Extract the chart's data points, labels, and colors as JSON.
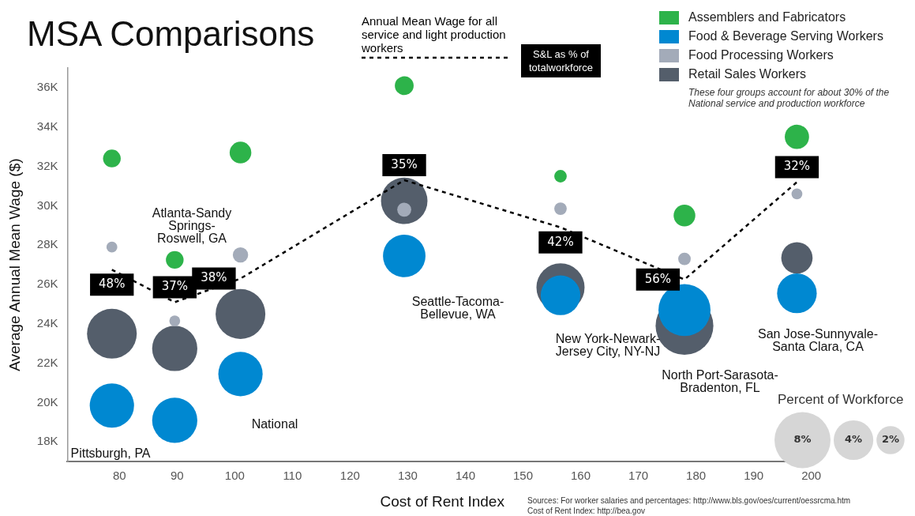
{
  "chart_data": {
    "type": "bubble",
    "title": "MSA Comparisons",
    "xlabel": "Cost of Rent Index",
    "ylabel": "Average Annual Mean Wage ($)",
    "xlim": [
      71,
      201
    ],
    "xticks": [
      80,
      90,
      100,
      110,
      120,
      130,
      140,
      150,
      160,
      170,
      180,
      190,
      200
    ],
    "ylim": [
      17000,
      37000
    ],
    "yticks": [
      {
        "value": 18000,
        "label": "18K"
      },
      {
        "value": 20000,
        "label": "20K"
      },
      {
        "value": 22000,
        "label": "22K"
      },
      {
        "value": 24000,
        "label": "24K"
      },
      {
        "value": 26000,
        "label": "26K"
      },
      {
        "value": 28000,
        "label": "28K"
      },
      {
        "value": 30000,
        "label": "30K"
      },
      {
        "value": 32000,
        "label": "32K"
      },
      {
        "value": 34000,
        "label": "34K"
      },
      {
        "value": 36000,
        "label": "36K"
      }
    ],
    "x": [
      78.7,
      89.6,
      101,
      129.4,
      156.5,
      178,
      197.5
    ],
    "grid": false,
    "legend": "top right",
    "size_legend": [
      {
        "value": 8,
        "label": "8%"
      },
      {
        "value": 4,
        "label": "4%"
      },
      {
        "value": 2,
        "label": "2%"
      }
    ],
    "series": [
      {
        "name": "Assemblers and Fabricators",
        "color": "#2db34a",
        "values": [
          32400,
          27250,
          32700,
          36100,
          31500,
          29500,
          33500
        ],
        "sizes": [
          0.8,
          0.8,
          1.2,
          0.9,
          0.4,
          1.2,
          1.5
        ]
      },
      {
        "name": "Food & Beverage Serving Workers",
        "color": "#0088d1",
        "values": [
          19850,
          19100,
          21450,
          27450,
          25450,
          24700,
          25550
        ],
        "sizes": [
          5.0,
          5.2,
          5.0,
          4.6,
          4.0,
          6.9,
          4.0
        ]
      },
      {
        "name": "Food Processing Workers",
        "color": "#a3abb9",
        "values": [
          27900,
          24150,
          27500,
          29800,
          29850,
          27300,
          30600
        ],
        "sizes": [
          0.3,
          0.3,
          0.6,
          0.5,
          0.4,
          0.4,
          0.3
        ]
      },
      {
        "name": "Retail Sales Workers",
        "color": "#545e6b",
        "values": [
          23500,
          22750,
          24500,
          30250,
          25850,
          23900,
          27350
        ],
        "sizes": [
          6.3,
          5.2,
          6.3,
          5.5,
          5.9,
          8.5,
          2.5
        ]
      },
      {
        "name": "Annual Mean Wage for all service and light production workers",
        "type": "line",
        "color": "#000000",
        "line_style": "dashed",
        "values": [
          26750,
          25100,
          26300,
          31300,
          28900,
          26250,
          31200
        ]
      }
    ],
    "annotations": [
      "Pittsburgh, PA",
      "Atlanta-Sandy\nSprings-\nRoswell, GA",
      "National",
      "Seattle-Tacoma-\nBellevue, WA",
      "New York-Newark-\nJersey City, NY-NJ",
      "North Port-Sarasota-\nBradenton, FL",
      "San Jose-Sunnyvale-\nSanta Clara, CA",
      "S&L as % of\ntotalworkforce",
      "These four groups account for about 30% of the\nNational service and production workforce",
      "Percent of Workforce",
      "Sources: For worker salaries and percentages: http://www.bls.gov/oes/current/oessrcma.htm\nCost of Rent Index: http://bea.gov",
      {
        "text": "48%",
        "x": 78.7,
        "y": 26750
      },
      {
        "text": "37%",
        "x": 89.6,
        "y": 25100
      },
      {
        "text": "38%",
        "x": 101,
        "y": 26300
      },
      {
        "text": "35%",
        "x": 129.4,
        "y": 31300
      },
      {
        "text": "42%",
        "x": 156.5,
        "y": 28900
      },
      {
        "text": "56%",
        "x": 178,
        "y": 26250
      },
      {
        "text": "32%",
        "x": 197.5,
        "y": 31200
      }
    ]
  }
}
